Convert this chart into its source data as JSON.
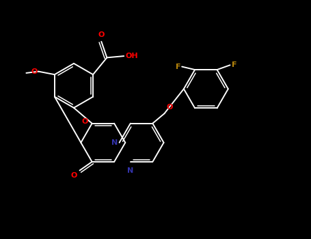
{
  "background_color": "#000000",
  "bond_color": "#ffffff",
  "atom_colors": {
    "O": "#ff0000",
    "N": "#3333aa",
    "F": "#b8860b",
    "C": "#ffffff"
  },
  "figsize": [
    4.55,
    3.5
  ],
  "dpi": 100
}
